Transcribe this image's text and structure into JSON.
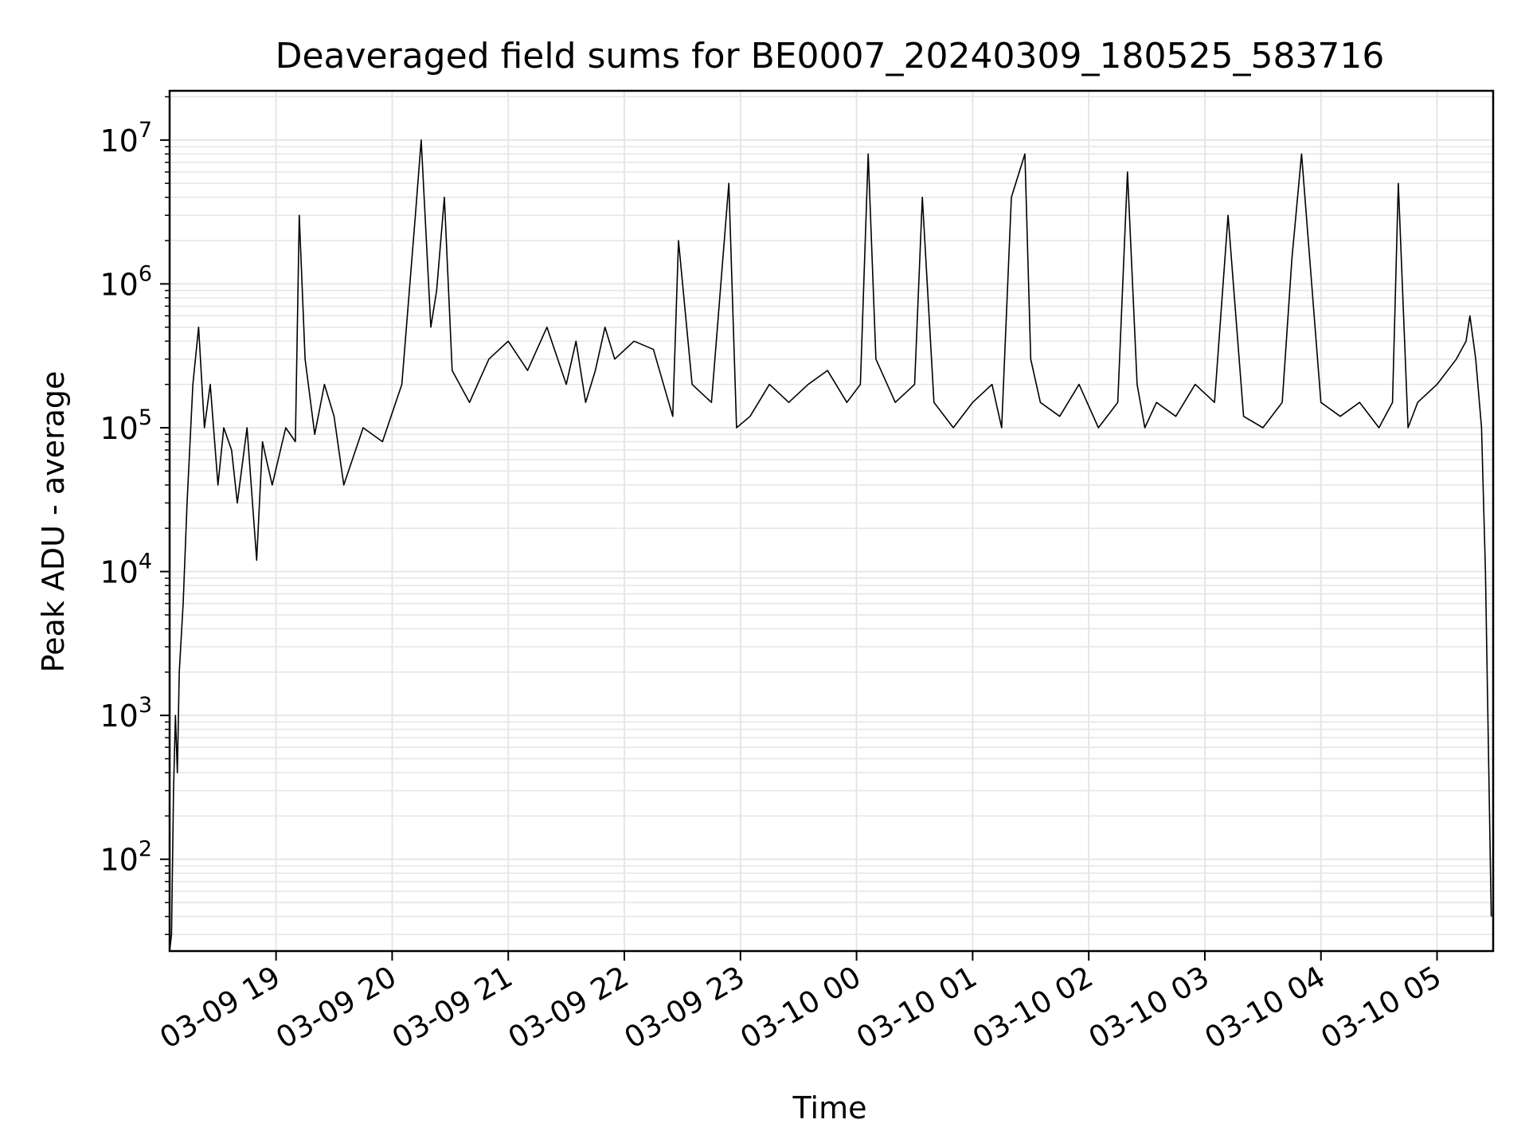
{
  "chart_data": {
    "type": "line",
    "title": "Deaveraged field sums for BE0007_20240309_180525_583716",
    "xlabel": "Time",
    "ylabel": "Peak ADU - average",
    "yscale": "log",
    "grid": true,
    "line_color": "#000000",
    "grid_color": "#e6e6e6",
    "ylim": [
      23,
      22000000
    ],
    "xlim": [
      "2024-03-09 18:05",
      "2024-03-10 05:29"
    ],
    "x_ticks": [
      {
        "t": "2024-03-09 19:00",
        "label": "03-09 19"
      },
      {
        "t": "2024-03-09 20:00",
        "label": "03-09 20"
      },
      {
        "t": "2024-03-09 21:00",
        "label": "03-09 21"
      },
      {
        "t": "2024-03-09 22:00",
        "label": "03-09 22"
      },
      {
        "t": "2024-03-09 23:00",
        "label": "03-09 23"
      },
      {
        "t": "2024-03-10 00:00",
        "label": "03-10 00"
      },
      {
        "t": "2024-03-10 01:00",
        "label": "03-10 01"
      },
      {
        "t": "2024-03-10 02:00",
        "label": "03-10 02"
      },
      {
        "t": "2024-03-10 03:00",
        "label": "03-10 03"
      },
      {
        "t": "2024-03-10 04:00",
        "label": "03-10 04"
      },
      {
        "t": "2024-03-10 05:00",
        "label": "03-10 05"
      }
    ],
    "y_ticks": [
      {
        "exp": 2,
        "label": "10",
        "sup": "2"
      },
      {
        "exp": 3,
        "label": "10",
        "sup": "3"
      },
      {
        "exp": 4,
        "label": "10",
        "sup": "4"
      },
      {
        "exp": 5,
        "label": "10",
        "sup": "5"
      },
      {
        "exp": 6,
        "label": "10",
        "sup": "6"
      },
      {
        "exp": 7,
        "label": "10",
        "sup": "7"
      }
    ],
    "series": [
      {
        "x": [
          "2024-03-09 18:05",
          "2024-03-09 18:06",
          "2024-03-09 18:07",
          "2024-03-09 18:08",
          "2024-03-09 18:09",
          "2024-03-09 18:10",
          "2024-03-09 18:12",
          "2024-03-09 18:14",
          "2024-03-09 18:17",
          "2024-03-09 18:20",
          "2024-03-09 18:23",
          "2024-03-09 18:26",
          "2024-03-09 18:30",
          "2024-03-09 18:33",
          "2024-03-09 18:37",
          "2024-03-09 18:40",
          "2024-03-09 18:45",
          "2024-03-09 18:50",
          "2024-03-09 18:53",
          "2024-03-09 18:55",
          "2024-03-09 18:58",
          "2024-03-09 19:05",
          "2024-03-09 19:10",
          "2024-03-09 19:12",
          "2024-03-09 19:15",
          "2024-03-09 19:20",
          "2024-03-09 19:25",
          "2024-03-09 19:30",
          "2024-03-09 19:35",
          "2024-03-09 19:45",
          "2024-03-09 19:55",
          "2024-03-09 20:05",
          "2024-03-09 20:12",
          "2024-03-09 20:15",
          "2024-03-09 20:20",
          "2024-03-09 20:23",
          "2024-03-09 20:27",
          "2024-03-09 20:31",
          "2024-03-09 20:40",
          "2024-03-09 20:50",
          "2024-03-09 21:00",
          "2024-03-09 21:10",
          "2024-03-09 21:20",
          "2024-03-09 21:30",
          "2024-03-09 21:35",
          "2024-03-09 21:40",
          "2024-03-09 21:45",
          "2024-03-09 21:50",
          "2024-03-09 21:55",
          "2024-03-09 22:05",
          "2024-03-09 22:15",
          "2024-03-09 22:25",
          "2024-03-09 22:28",
          "2024-03-09 22:35",
          "2024-03-09 22:45",
          "2024-03-09 22:54",
          "2024-03-09 22:58",
          "2024-03-09 23:05",
          "2024-03-09 23:15",
          "2024-03-09 23:25",
          "2024-03-09 23:35",
          "2024-03-09 23:45",
          "2024-03-09 23:55",
          "2024-03-10 00:02",
          "2024-03-10 00:06",
          "2024-03-10 00:10",
          "2024-03-10 00:20",
          "2024-03-10 00:30",
          "2024-03-10 00:34",
          "2024-03-10 00:40",
          "2024-03-10 00:50",
          "2024-03-10 01:00",
          "2024-03-10 01:10",
          "2024-03-10 01:15",
          "2024-03-10 01:20",
          "2024-03-10 01:27",
          "2024-03-10 01:30",
          "2024-03-10 01:35",
          "2024-03-10 01:45",
          "2024-03-10 01:55",
          "2024-03-10 02:05",
          "2024-03-10 02:15",
          "2024-03-10 02:20",
          "2024-03-10 02:25",
          "2024-03-10 02:29",
          "2024-03-10 02:35",
          "2024-03-10 02:45",
          "2024-03-10 02:55",
          "2024-03-10 03:05",
          "2024-03-10 03:12",
          "2024-03-10 03:20",
          "2024-03-10 03:30",
          "2024-03-10 03:40",
          "2024-03-10 03:45",
          "2024-03-10 03:50",
          "2024-03-10 04:00",
          "2024-03-10 04:10",
          "2024-03-10 04:20",
          "2024-03-10 04:30",
          "2024-03-10 04:37",
          "2024-03-10 04:40",
          "2024-03-10 04:45",
          "2024-03-10 04:50",
          "2024-03-10 05:00",
          "2024-03-10 05:10",
          "2024-03-10 05:15",
          "2024-03-10 05:17",
          "2024-03-10 05:20",
          "2024-03-10 05:23",
          "2024-03-10 05:25",
          "2024-03-10 05:28"
        ],
        "y": [
          23,
          30,
          300,
          1000,
          400,
          2000,
          6000,
          30000,
          200000,
          500000,
          100000,
          200000,
          40000,
          100000,
          70000,
          30000,
          100000,
          12000,
          80000,
          60000,
          40000,
          100000,
          80000,
          3000000,
          300000,
          90000,
          200000,
          120000,
          40000,
          100000,
          80000,
          200000,
          3000000,
          10000000,
          500000,
          900000,
          4000000,
          250000,
          150000,
          300000,
          400000,
          250000,
          500000,
          200000,
          400000,
          150000,
          250000,
          500000,
          300000,
          400000,
          350000,
          120000,
          2000000,
          200000,
          150000,
          5000000,
          100000,
          120000,
          200000,
          150000,
          200000,
          250000,
          150000,
          200000,
          8000000,
          300000,
          150000,
          200000,
          4000000,
          150000,
          100000,
          150000,
          200000,
          100000,
          4000000,
          8000000,
          300000,
          150000,
          120000,
          200000,
          100000,
          150000,
          6000000,
          200000,
          100000,
          150000,
          120000,
          200000,
          150000,
          3000000,
          120000,
          100000,
          150000,
          1500000,
          8000000,
          150000,
          120000,
          150000,
          100000,
          150000,
          5000000,
          100000,
          150000,
          200000,
          300000,
          400000,
          600000,
          300000,
          100000,
          10000,
          40
        ]
      }
    ]
  }
}
